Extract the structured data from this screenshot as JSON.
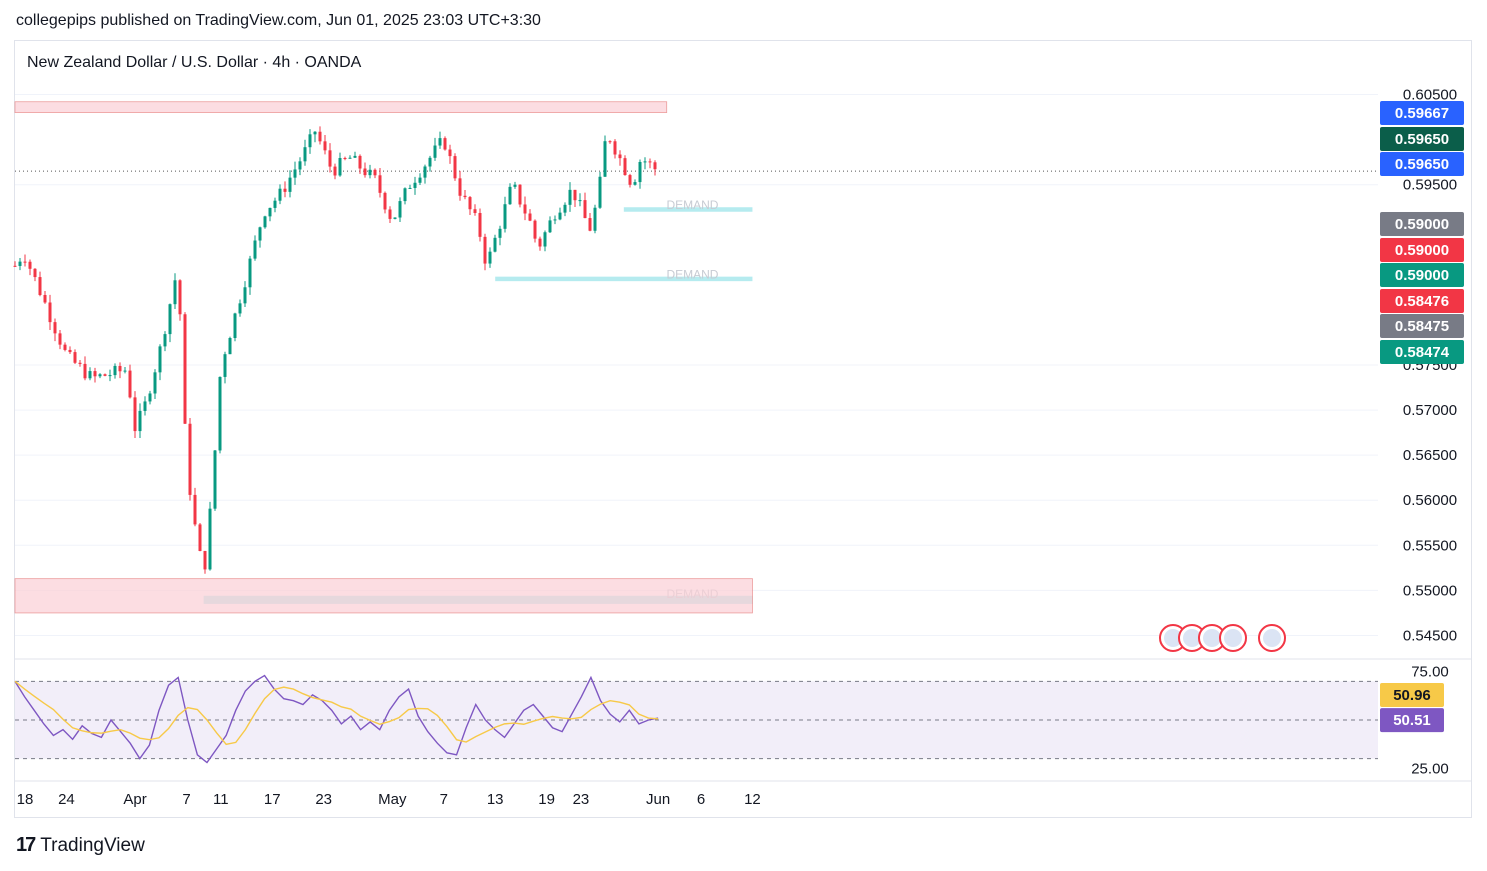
{
  "header": {
    "publish_line": "collegepips published on TradingView.com, Jun 01, 2025 23:03 UTC+3:30"
  },
  "symbol": {
    "title": "New Zealand Dollar / U.S. Dollar · 4h · OANDA"
  },
  "footer": {
    "brand_mark": "17",
    "brand_name": "TradingView"
  },
  "colors": {
    "up": "#089981",
    "down": "#f23645",
    "rsi_line": "#7e57c2",
    "rsi_ma": "#f7c948",
    "demand_zone": "#a8e8ec",
    "supply_zone": "#fbd0d6"
  },
  "chart_data": {
    "type": "candlestick",
    "price_axis": {
      "labels": [
        "0.60500",
        "0.59500",
        "0.57500",
        "0.57000",
        "0.56500",
        "0.56000",
        "0.55500",
        "0.55000",
        "0.54500"
      ],
      "range": [
        0.5425,
        0.6075
      ]
    },
    "price_badges": [
      {
        "label": "0.59667",
        "color": "#2962ff"
      },
      {
        "label": "0.59650",
        "color": "#0b5e4a"
      },
      {
        "label": "0.59650",
        "color": "#2962ff"
      },
      {
        "label": "0.59000",
        "color": "#787b86"
      },
      {
        "label": "0.59000",
        "color": "#f23645"
      },
      {
        "label": "0.59000",
        "color": "#089981"
      },
      {
        "label": "0.58476",
        "color": "#f23645"
      },
      {
        "label": "0.58475",
        "color": "#787b86"
      },
      {
        "label": "0.58474",
        "color": "#089981"
      }
    ],
    "time_axis": [
      "18",
      "24",
      "Apr",
      "7",
      "11",
      "17",
      "23",
      "May",
      "7",
      "13",
      "19",
      "23",
      "Jun",
      "6",
      "12"
    ],
    "close_path": [
      {
        "date": "2025-03-18",
        "close": 0.586
      },
      {
        "date": "2025-03-19",
        "close": 0.5875
      },
      {
        "date": "2025-03-21",
        "close": 0.583
      },
      {
        "date": "2025-03-24",
        "close": 0.576
      },
      {
        "date": "2025-03-27",
        "close": 0.5735
      },
      {
        "date": "2025-03-31",
        "close": 0.5745
      },
      {
        "date": "2025-04-01",
        "close": 0.568
      },
      {
        "date": "2025-04-02",
        "close": 0.57
      },
      {
        "date": "2025-04-04",
        "close": 0.577
      },
      {
        "date": "2025-04-06",
        "close": 0.586
      },
      {
        "date": "2025-04-07",
        "close": 0.564
      },
      {
        "date": "2025-04-08",
        "close": 0.557
      },
      {
        "date": "2025-04-09",
        "close": 0.5515
      },
      {
        "date": "2025-04-10",
        "close": 0.561
      },
      {
        "date": "2025-04-11",
        "close": 0.575
      },
      {
        "date": "2025-04-14",
        "close": 0.585
      },
      {
        "date": "2025-04-16",
        "close": 0.592
      },
      {
        "date": "2025-04-18",
        "close": 0.594
      },
      {
        "date": "2025-04-21",
        "close": 0.599
      },
      {
        "date": "2025-04-22",
        "close": 0.601
      },
      {
        "date": "2025-04-24",
        "close": 0.5965
      },
      {
        "date": "2025-04-26",
        "close": 0.598
      },
      {
        "date": "2025-04-29",
        "close": 0.5955
      },
      {
        "date": "2025-05-01",
        "close": 0.591
      },
      {
        "date": "2025-05-03",
        "close": 0.595
      },
      {
        "date": "2025-05-05",
        "close": 0.5975
      },
      {
        "date": "2025-05-07",
        "close": 0.6
      },
      {
        "date": "2025-05-09",
        "close": 0.594
      },
      {
        "date": "2025-05-11",
        "close": 0.5905
      },
      {
        "date": "2025-05-12",
        "close": 0.586
      },
      {
        "date": "2025-05-13",
        "close": 0.589
      },
      {
        "date": "2025-05-15",
        "close": 0.595
      },
      {
        "date": "2025-05-17",
        "close": 0.591
      },
      {
        "date": "2025-05-18",
        "close": 0.588
      },
      {
        "date": "2025-05-20",
        "close": 0.592
      },
      {
        "date": "2025-05-22",
        "close": 0.5945
      },
      {
        "date": "2025-05-24",
        "close": 0.59
      },
      {
        "date": "2025-05-25",
        "close": 0.5935
      },
      {
        "date": "2025-05-26",
        "close": 0.601
      },
      {
        "date": "2025-05-27",
        "close": 0.599
      },
      {
        "date": "2025-05-29",
        "close": 0.595
      },
      {
        "date": "2025-05-30",
        "close": 0.598
      },
      {
        "date": "2025-06-01",
        "close": 0.5965
      }
    ],
    "zones": [
      {
        "type": "supply",
        "from_date": "2025-03-18",
        "to_date": "2025-06-02",
        "top": 0.6042,
        "bottom": 0.603
      },
      {
        "type": "demand",
        "label": "DEMAND",
        "from_date": "2025-05-28",
        "to_date": "2025-06-12",
        "top": 0.5925,
        "bottom": 0.592
      },
      {
        "type": "demand",
        "label": "DEMAND",
        "from_date": "2025-05-13",
        "to_date": "2025-06-12",
        "top": 0.5848,
        "bottom": 0.5843
      },
      {
        "type": "demand",
        "label": "DEMAND",
        "from_date": "2025-04-09",
        "to_date": "2025-06-12",
        "top": 0.5494,
        "bottom": 0.5485
      },
      {
        "type": "supply",
        "from_date": "2025-03-18",
        "to_date": "2025-06-12",
        "top": 0.5513,
        "bottom": 0.5475
      }
    ],
    "rsi": {
      "axis_labels": [
        "75.00",
        "25.00"
      ],
      "range": [
        20,
        80
      ],
      "upper_band": 70,
      "lower_band": 30,
      "rsi_value": "50.51",
      "ma_value": "50.96",
      "values": [
        70,
        62,
        55,
        48,
        42,
        45,
        40,
        47,
        43,
        41,
        50,
        44,
        38,
        30,
        37,
        55,
        68,
        72,
        50,
        32,
        28,
        35,
        42,
        55,
        65,
        70,
        73,
        66,
        61,
        60,
        58,
        63,
        60,
        55,
        48,
        52,
        45,
        49,
        45,
        55,
        62,
        66,
        52,
        44,
        38,
        33,
        32,
        46,
        58,
        50,
        45,
        41,
        48,
        55,
        58,
        52,
        46,
        44,
        53,
        62,
        72,
        60,
        53,
        49,
        55,
        48,
        50,
        51
      ]
    }
  }
}
